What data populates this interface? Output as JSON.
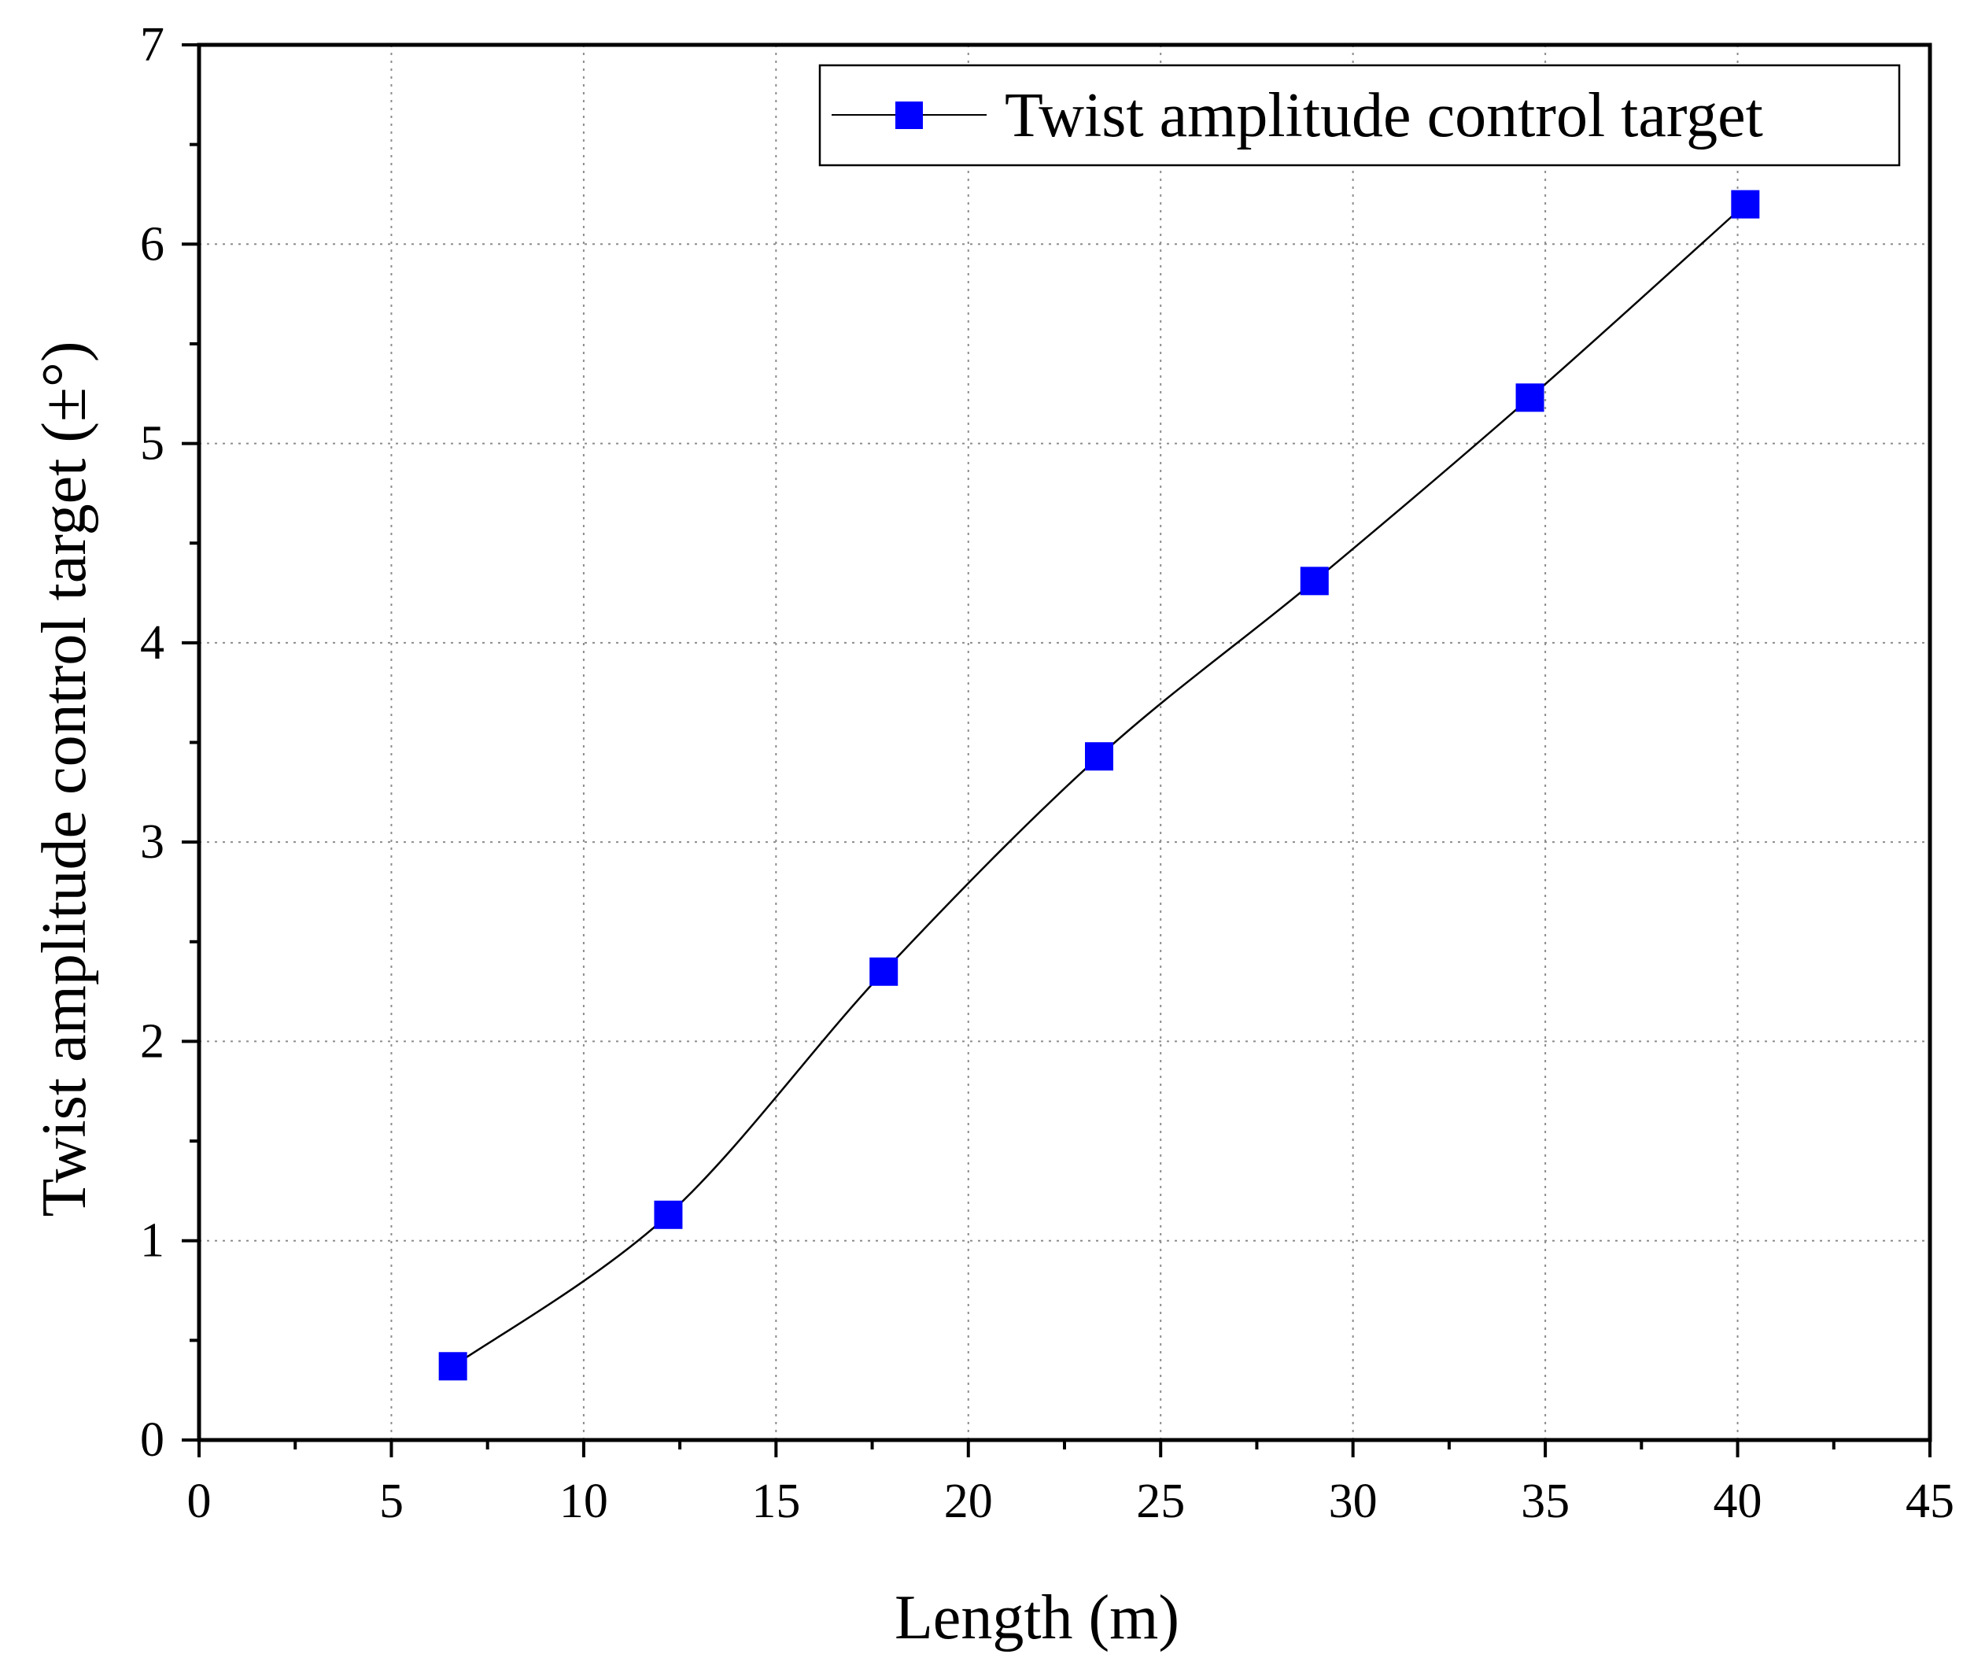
{
  "chart_data": {
    "type": "line",
    "xlabel": "Length  (m)",
    "ylabel": "Twist amplitude control target (±°)",
    "xlim": [
      0,
      45
    ],
    "ylim": [
      0,
      7
    ],
    "x_ticks": [
      "0",
      "5",
      "10",
      "15",
      "20",
      "25",
      "30",
      "35",
      "40",
      "45"
    ],
    "y_ticks": [
      "0",
      "1",
      "2",
      "3",
      "4",
      "5",
      "6",
      "7"
    ],
    "grid": true,
    "legend_position": "top-right",
    "series": [
      {
        "name": "Twist amplitude control target",
        "color": "#0000ff",
        "line_color": "#000000",
        "marker": "square",
        "x": [
          6.6,
          12.2,
          17.8,
          23.4,
          29.0,
          34.6,
          40.2
        ],
        "y": [
          0.37,
          1.13,
          2.35,
          3.43,
          4.31,
          5.23,
          6.2
        ]
      }
    ]
  }
}
